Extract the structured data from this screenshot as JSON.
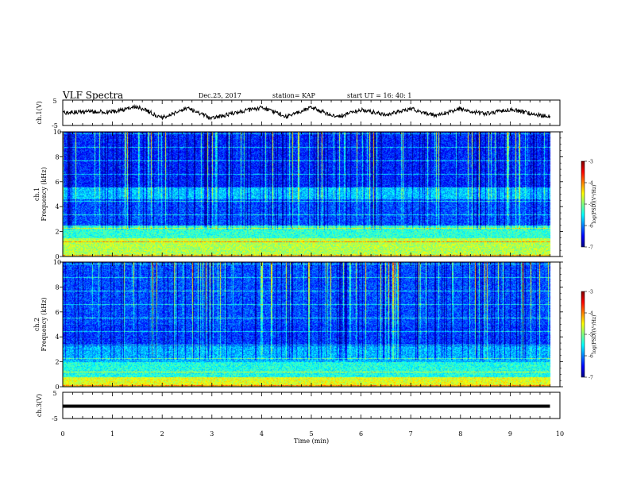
{
  "header": {
    "title": "VLF Spectra",
    "date": "Dec.25, 2017",
    "station": "station= KAP",
    "start": "start  UT =   16: 40: 1"
  },
  "chart_data": [
    {
      "type": "line",
      "panel": "waveform-ch1",
      "ylabel": "ch.1(V)",
      "ylim": [
        -5,
        5
      ],
      "yticks": [
        "5",
        "-5"
      ],
      "x": [
        0,
        0.5,
        1,
        1.5,
        2,
        2.5,
        3,
        3.5,
        4,
        4.5,
        5,
        5.5,
        6,
        6.5,
        7,
        7.5,
        8,
        8.5,
        9,
        9.5,
        9.8
      ],
      "y": [
        0,
        0.5,
        0.3,
        2.5,
        -2,
        1.8,
        -2.2,
        0.2,
        2,
        -1.5,
        2.2,
        -1.8,
        1.2,
        -0.8,
        1.6,
        -1.2,
        1.5,
        -0.5,
        1.3,
        -0.6,
        -1.5
      ]
    },
    {
      "type": "heatmap",
      "panel": "spectrogram-ch1",
      "ylabel": "ch.1\nFrequency  (kHz)",
      "ylim": [
        0,
        10
      ],
      "yticks": [
        "0",
        "2",
        "4",
        "6",
        "8",
        "10"
      ],
      "z_label": "log(PSD)(V²/Hz)",
      "z_range": [
        -7,
        -3
      ],
      "z_ticks": [
        "-3",
        "-4",
        "-5",
        "-6",
        "-7"
      ]
    },
    {
      "type": "heatmap",
      "panel": "spectrogram-ch2",
      "ylabel": "ch.2\nFrequency  (kHz)",
      "ylim": [
        0,
        10
      ],
      "yticks": [
        "0",
        "2",
        "4",
        "6",
        "8",
        "10"
      ],
      "z_label": "log(PSD)(V²/Hz)",
      "z_range": [
        -7,
        -3
      ],
      "z_ticks": [
        "-3",
        "-4",
        "-5",
        "-6",
        "-7"
      ]
    },
    {
      "type": "line",
      "panel": "waveform-ch3",
      "ylabel": "ch.3(V)",
      "ylim": [
        -5,
        5
      ],
      "yticks": [
        "5",
        "-5"
      ],
      "x": [
        0,
        9.8
      ],
      "y": [
        0,
        0
      ]
    }
  ],
  "xaxis": {
    "label": "Time  (min)",
    "xlim": [
      0,
      10
    ],
    "ticks": [
      "0",
      "1",
      "2",
      "3",
      "4",
      "5",
      "6",
      "7",
      "8",
      "9",
      "10"
    ]
  },
  "colors": {
    "waveform": "#000000",
    "colormap": [
      "#000080",
      "#0000ff",
      "#0080ff",
      "#00ffff",
      "#80ff80",
      "#ffff00",
      "#ff8000",
      "#ff0000",
      "#800000"
    ]
  }
}
